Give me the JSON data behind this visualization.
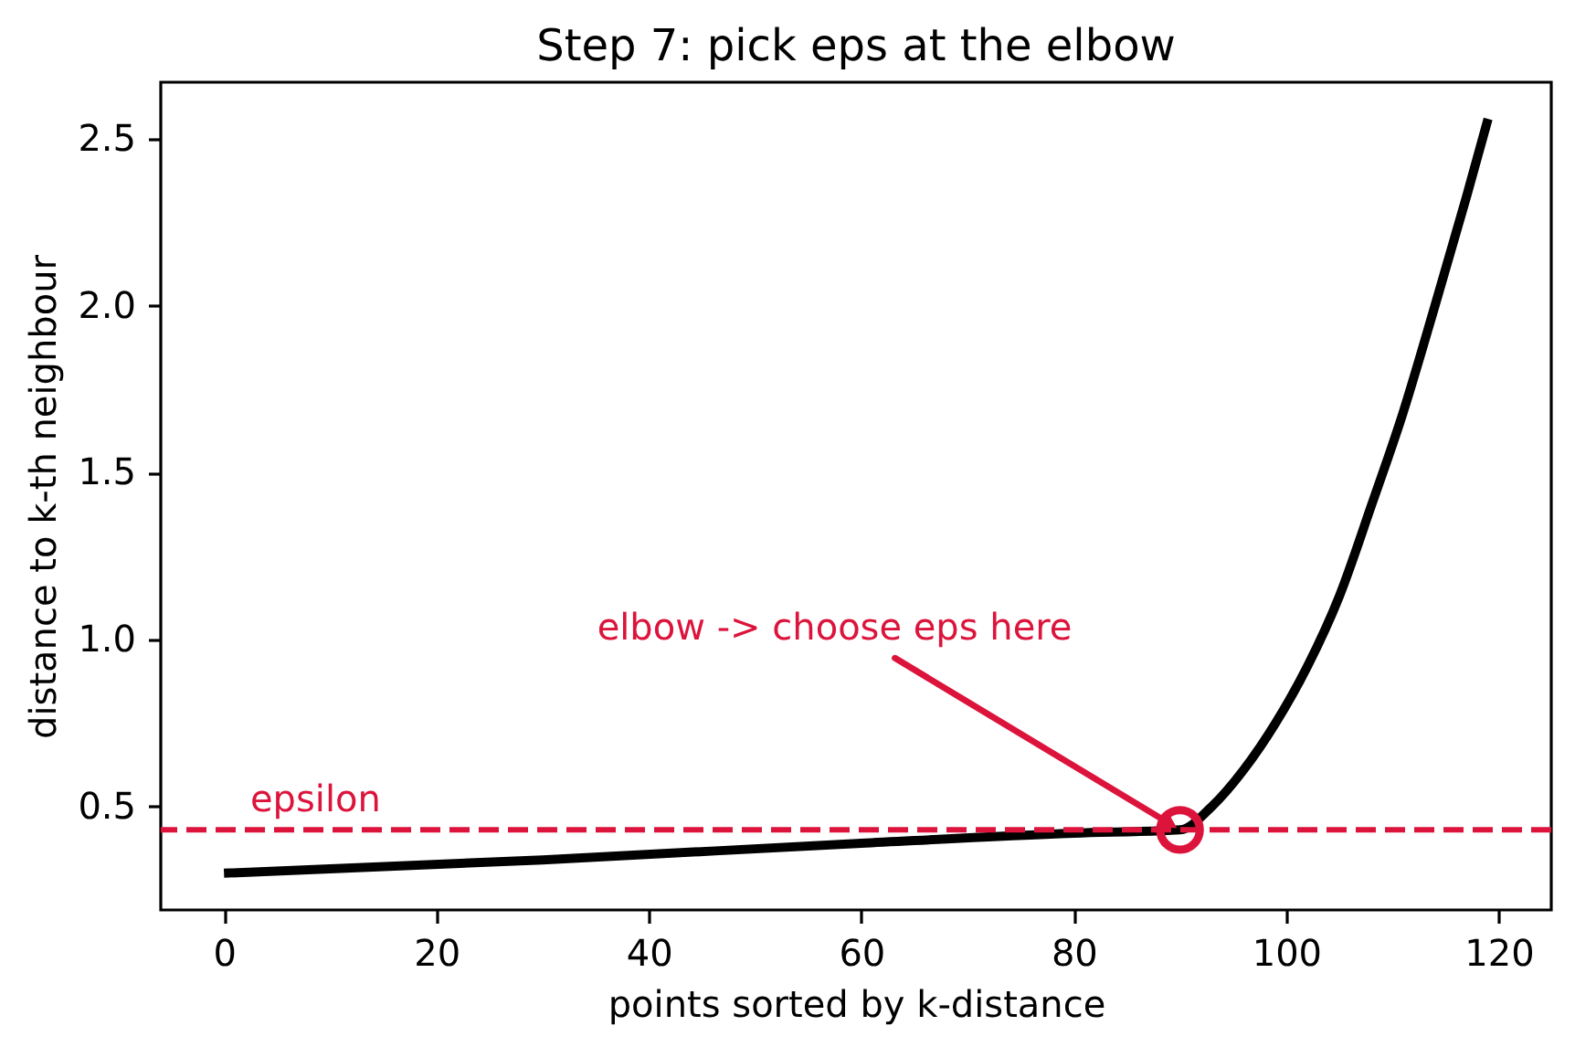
{
  "chart_data": {
    "type": "line",
    "title": "Step 7: pick eps at the elbow",
    "xlabel": "points sorted by k-distance",
    "ylabel": "distance to k-th neighbour",
    "x": [
      0,
      30,
      60,
      80,
      90,
      93,
      96,
      99,
      102,
      105,
      108,
      111,
      114,
      117,
      119
    ],
    "series": [
      {
        "color": "#000000",
        "line_style": "solid",
        "values": [
          0.3,
          0.34,
          0.39,
          0.42,
          0.43,
          0.5,
          0.61,
          0.75,
          0.92,
          1.13,
          1.4,
          1.68,
          2.0,
          2.33,
          2.56
        ]
      },
      {
        "type": "scatter",
        "x": [
          90
        ],
        "values": [
          0.43
        ],
        "color": "#dc143c",
        "marker": "circle"
      }
    ],
    "xlim": [
      -5.95,
      124.95
    ],
    "ylim": [
      0.19,
      2.67
    ],
    "xticks": [
      0,
      20,
      40,
      60,
      80,
      100,
      120
    ],
    "yticks": [
      0.5,
      {
        "value": 1.0,
        "label": "1.0"
      },
      1.5,
      {
        "value": 2.0,
        "label": "2.0"
      },
      2.5
    ],
    "ref_lines": [
      {
        "axis": "y",
        "value": 0.43,
        "label": "epsilon",
        "color": "#dc143c",
        "line_style": "dashed"
      }
    ],
    "annotations": [
      {
        "text": "elbow -> choose eps here",
        "x": 90,
        "y": 0.43
      }
    ],
    "grid": false
  }
}
